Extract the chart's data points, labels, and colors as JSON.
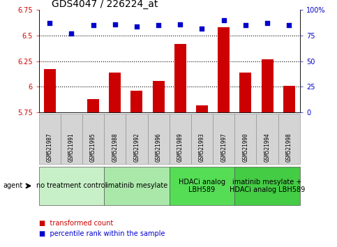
{
  "title": "GDS4047 / 226224_at",
  "samples": [
    "GSM521987",
    "GSM521991",
    "GSM521995",
    "GSM521988",
    "GSM521992",
    "GSM521996",
    "GSM521989",
    "GSM521993",
    "GSM521997",
    "GSM521990",
    "GSM521994",
    "GSM521998"
  ],
  "bar_values": [
    6.17,
    5.73,
    5.88,
    6.14,
    5.96,
    6.06,
    6.42,
    5.82,
    6.58,
    6.14,
    6.27,
    6.01
  ],
  "scatter_values": [
    87,
    77,
    85,
    86,
    84,
    85,
    86,
    82,
    90,
    85,
    87,
    85
  ],
  "bar_color": "#cc0000",
  "scatter_color": "#0000cc",
  "ylim_left": [
    5.75,
    6.75
  ],
  "ylim_right": [
    0,
    100
  ],
  "yticks_left": [
    5.75,
    6.0,
    6.25,
    6.5,
    6.75
  ],
  "yticks_right": [
    0,
    25,
    50,
    75,
    100
  ],
  "ytick_labels_left": [
    "5.75",
    "6",
    "6.25",
    "6.5",
    "6.75"
  ],
  "ytick_labels_right": [
    "0",
    "25",
    "50",
    "75",
    "100%"
  ],
  "hlines": [
    6.0,
    6.25,
    6.5
  ],
  "groups": [
    {
      "label": "no treatment control",
      "start": 0,
      "end": 3,
      "color": "#c8f0c8"
    },
    {
      "label": "imatinib mesylate",
      "start": 3,
      "end": 6,
      "color": "#aae8aa"
    },
    {
      "label": "HDACi analog\nLBH589",
      "start": 6,
      "end": 9,
      "color": "#55dd55"
    },
    {
      "label": "imatinib mesylate +\nHDACi analog LBH589",
      "start": 9,
      "end": 12,
      "color": "#44cc44"
    }
  ],
  "legend_bar_label": "transformed count",
  "legend_scatter_label": "percentile rank within the sample",
  "agent_label": "agent",
  "title_fontsize": 10,
  "tick_fontsize": 7,
  "sample_fontsize": 5.5,
  "group_fontsize": 7,
  "legend_fontsize": 7
}
